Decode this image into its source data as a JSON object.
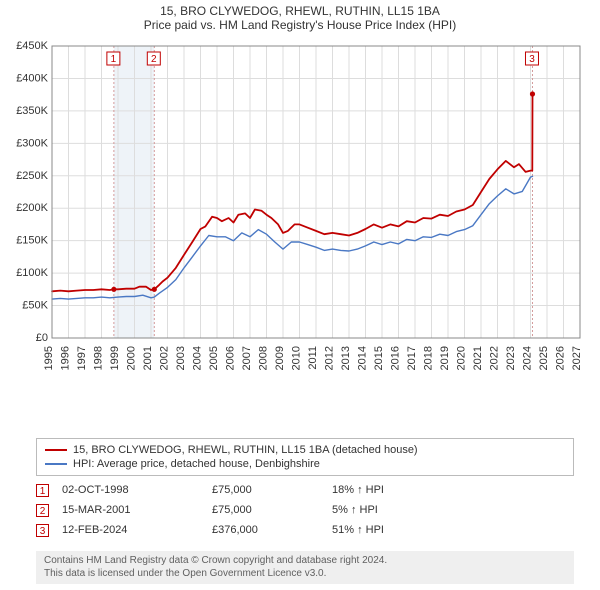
{
  "title": "15, BRO CLYWEDOG, RHEWL, RUTHIN, LL15 1BA",
  "subtitle": "Price paid vs. HM Land Registry's House Price Index (HPI)",
  "chart": {
    "type": "line",
    "background_color": "#ffffff",
    "grid_color": "#dddddd",
    "axis_color": "#888888",
    "title_fontsize": 12,
    "label_fontsize": 11,
    "x": {
      "min": 1995,
      "max": 2027,
      "ticks": [
        1995,
        1996,
        1997,
        1998,
        1999,
        2000,
        2001,
        2002,
        2003,
        2004,
        2005,
        2006,
        2007,
        2008,
        2009,
        2010,
        2011,
        2012,
        2013,
        2014,
        2015,
        2016,
        2017,
        2018,
        2019,
        2020,
        2021,
        2022,
        2023,
        2024,
        2025,
        2026,
        2027
      ]
    },
    "y": {
      "min": 0,
      "max": 450000,
      "ticks": [
        0,
        50000,
        100000,
        150000,
        200000,
        250000,
        300000,
        350000,
        400000,
        450000
      ],
      "tick_labels": [
        "£0",
        "£50K",
        "£100K",
        "£150K",
        "£200K",
        "£250K",
        "£300K",
        "£350K",
        "£400K",
        "£450K"
      ]
    },
    "highlight_band": {
      "from": 1998.75,
      "to": 2001.2,
      "fill": "#eef3f8"
    },
    "series": [
      {
        "name": "15, BRO CLYWEDOG, RHEWL, RUTHIN, LL15 1BA (detached house)",
        "color": "#c00000",
        "width": 1.8,
        "points": [
          [
            1995.0,
            72000
          ],
          [
            1995.5,
            73000
          ],
          [
            1996.0,
            72000
          ],
          [
            1996.5,
            73000
          ],
          [
            1997.0,
            74000
          ],
          [
            1997.5,
            74000
          ],
          [
            1998.0,
            75000
          ],
          [
            1998.5,
            74000
          ],
          [
            1998.75,
            75000
          ],
          [
            1999.0,
            75000
          ],
          [
            1999.5,
            76000
          ],
          [
            2000.0,
            76000
          ],
          [
            2000.3,
            79000
          ],
          [
            2000.7,
            79000
          ],
          [
            2001.0,
            74000
          ],
          [
            2001.2,
            75000
          ],
          [
            2001.5,
            82000
          ],
          [
            2001.7,
            87000
          ],
          [
            2002.0,
            93000
          ],
          [
            2002.5,
            108000
          ],
          [
            2003.0,
            128000
          ],
          [
            2003.5,
            148000
          ],
          [
            2004.0,
            168000
          ],
          [
            2004.3,
            172000
          ],
          [
            2004.7,
            187000
          ],
          [
            2005.0,
            185000
          ],
          [
            2005.3,
            180000
          ],
          [
            2005.7,
            185000
          ],
          [
            2006.0,
            178000
          ],
          [
            2006.3,
            190000
          ],
          [
            2006.7,
            192000
          ],
          [
            2007.0,
            185000
          ],
          [
            2007.3,
            198000
          ],
          [
            2007.7,
            196000
          ],
          [
            2008.0,
            190000
          ],
          [
            2008.3,
            185000
          ],
          [
            2008.7,
            175000
          ],
          [
            2009.0,
            162000
          ],
          [
            2009.3,
            165000
          ],
          [
            2009.7,
            175000
          ],
          [
            2010.0,
            175000
          ],
          [
            2010.5,
            170000
          ],
          [
            2011.0,
            165000
          ],
          [
            2011.5,
            160000
          ],
          [
            2012.0,
            162000
          ],
          [
            2012.5,
            160000
          ],
          [
            2013.0,
            158000
          ],
          [
            2013.5,
            162000
          ],
          [
            2014.0,
            168000
          ],
          [
            2014.5,
            175000
          ],
          [
            2015.0,
            170000
          ],
          [
            2015.5,
            175000
          ],
          [
            2016.0,
            172000
          ],
          [
            2016.5,
            180000
          ],
          [
            2017.0,
            178000
          ],
          [
            2017.5,
            185000
          ],
          [
            2018.0,
            184000
          ],
          [
            2018.5,
            190000
          ],
          [
            2019.0,
            188000
          ],
          [
            2019.5,
            195000
          ],
          [
            2020.0,
            198000
          ],
          [
            2020.5,
            205000
          ],
          [
            2021.0,
            225000
          ],
          [
            2021.5,
            245000
          ],
          [
            2022.0,
            260000
          ],
          [
            2022.5,
            273000
          ],
          [
            2023.0,
            263000
          ],
          [
            2023.3,
            268000
          ],
          [
            2023.7,
            256000
          ],
          [
            2024.0,
            258000
          ],
          [
            2024.11,
            258000
          ],
          [
            2024.12,
            376000
          ]
        ]
      },
      {
        "name": "HPI: Average price, detached house, Denbighshire",
        "color": "#4a78c4",
        "width": 1.4,
        "points": [
          [
            1995.0,
            60000
          ],
          [
            1995.5,
            61000
          ],
          [
            1996.0,
            60000
          ],
          [
            1996.5,
            61000
          ],
          [
            1997.0,
            62000
          ],
          [
            1997.5,
            62000
          ],
          [
            1998.0,
            63000
          ],
          [
            1998.5,
            62000
          ],
          [
            1999.0,
            63000
          ],
          [
            1999.5,
            64000
          ],
          [
            2000.0,
            64000
          ],
          [
            2000.5,
            66000
          ],
          [
            2001.0,
            62000
          ],
          [
            2001.2,
            63000
          ],
          [
            2001.5,
            69000
          ],
          [
            2002.0,
            78000
          ],
          [
            2002.5,
            90000
          ],
          [
            2003.0,
            108000
          ],
          [
            2003.5,
            125000
          ],
          [
            2004.0,
            142000
          ],
          [
            2004.5,
            158000
          ],
          [
            2005.0,
            156000
          ],
          [
            2005.5,
            156000
          ],
          [
            2006.0,
            150000
          ],
          [
            2006.5,
            162000
          ],
          [
            2007.0,
            156000
          ],
          [
            2007.5,
            167000
          ],
          [
            2008.0,
            160000
          ],
          [
            2008.5,
            148000
          ],
          [
            2009.0,
            137000
          ],
          [
            2009.5,
            148000
          ],
          [
            2010.0,
            148000
          ],
          [
            2010.5,
            144000
          ],
          [
            2011.0,
            140000
          ],
          [
            2011.5,
            135000
          ],
          [
            2012.0,
            137000
          ],
          [
            2012.5,
            135000
          ],
          [
            2013.0,
            134000
          ],
          [
            2013.5,
            137000
          ],
          [
            2014.0,
            142000
          ],
          [
            2014.5,
            148000
          ],
          [
            2015.0,
            144000
          ],
          [
            2015.5,
            148000
          ],
          [
            2016.0,
            145000
          ],
          [
            2016.5,
            152000
          ],
          [
            2017.0,
            150000
          ],
          [
            2017.5,
            156000
          ],
          [
            2018.0,
            155000
          ],
          [
            2018.5,
            160000
          ],
          [
            2019.0,
            158000
          ],
          [
            2019.5,
            164000
          ],
          [
            2020.0,
            167000
          ],
          [
            2020.5,
            173000
          ],
          [
            2021.0,
            190000
          ],
          [
            2021.5,
            207000
          ],
          [
            2022.0,
            219000
          ],
          [
            2022.5,
            230000
          ],
          [
            2023.0,
            222000
          ],
          [
            2023.5,
            226000
          ],
          [
            2024.0,
            248000
          ],
          [
            2024.12,
            249000
          ]
        ]
      }
    ],
    "markers": [
      {
        "id": "1",
        "x": 1998.75,
        "line_color": "#d49a9a"
      },
      {
        "id": "2",
        "x": 2001.2,
        "line_color": "#d49a9a"
      },
      {
        "id": "3",
        "x": 2024.12,
        "line_color": "#d49a9a"
      }
    ],
    "sale_points": [
      {
        "x": 1998.75,
        "y": 75000,
        "color": "#c00000"
      },
      {
        "x": 2001.2,
        "y": 75000,
        "color": "#c00000"
      },
      {
        "x": 2024.12,
        "y": 376000,
        "color": "#c00000"
      }
    ]
  },
  "legend": {
    "items": [
      {
        "color": "#c00000",
        "label": "15, BRO CLYWEDOG, RHEWL, RUTHIN, LL15 1BA (detached house)"
      },
      {
        "color": "#4a78c4",
        "label": "HPI: Average price, detached house, Denbighshire"
      }
    ]
  },
  "transactions": [
    {
      "id": "1",
      "date": "02-OCT-1998",
      "price": "£75,000",
      "delta": "18% ↑ HPI"
    },
    {
      "id": "2",
      "date": "15-MAR-2001",
      "price": "£75,000",
      "delta": "5% ↑ HPI"
    },
    {
      "id": "3",
      "date": "12-FEB-2024",
      "price": "£376,000",
      "delta": "51% ↑ HPI"
    }
  ],
  "footer": {
    "line1": "Contains HM Land Registry data © Crown copyright and database right 2024.",
    "line2": "This data is licensed under the Open Government Licence v3.0."
  }
}
